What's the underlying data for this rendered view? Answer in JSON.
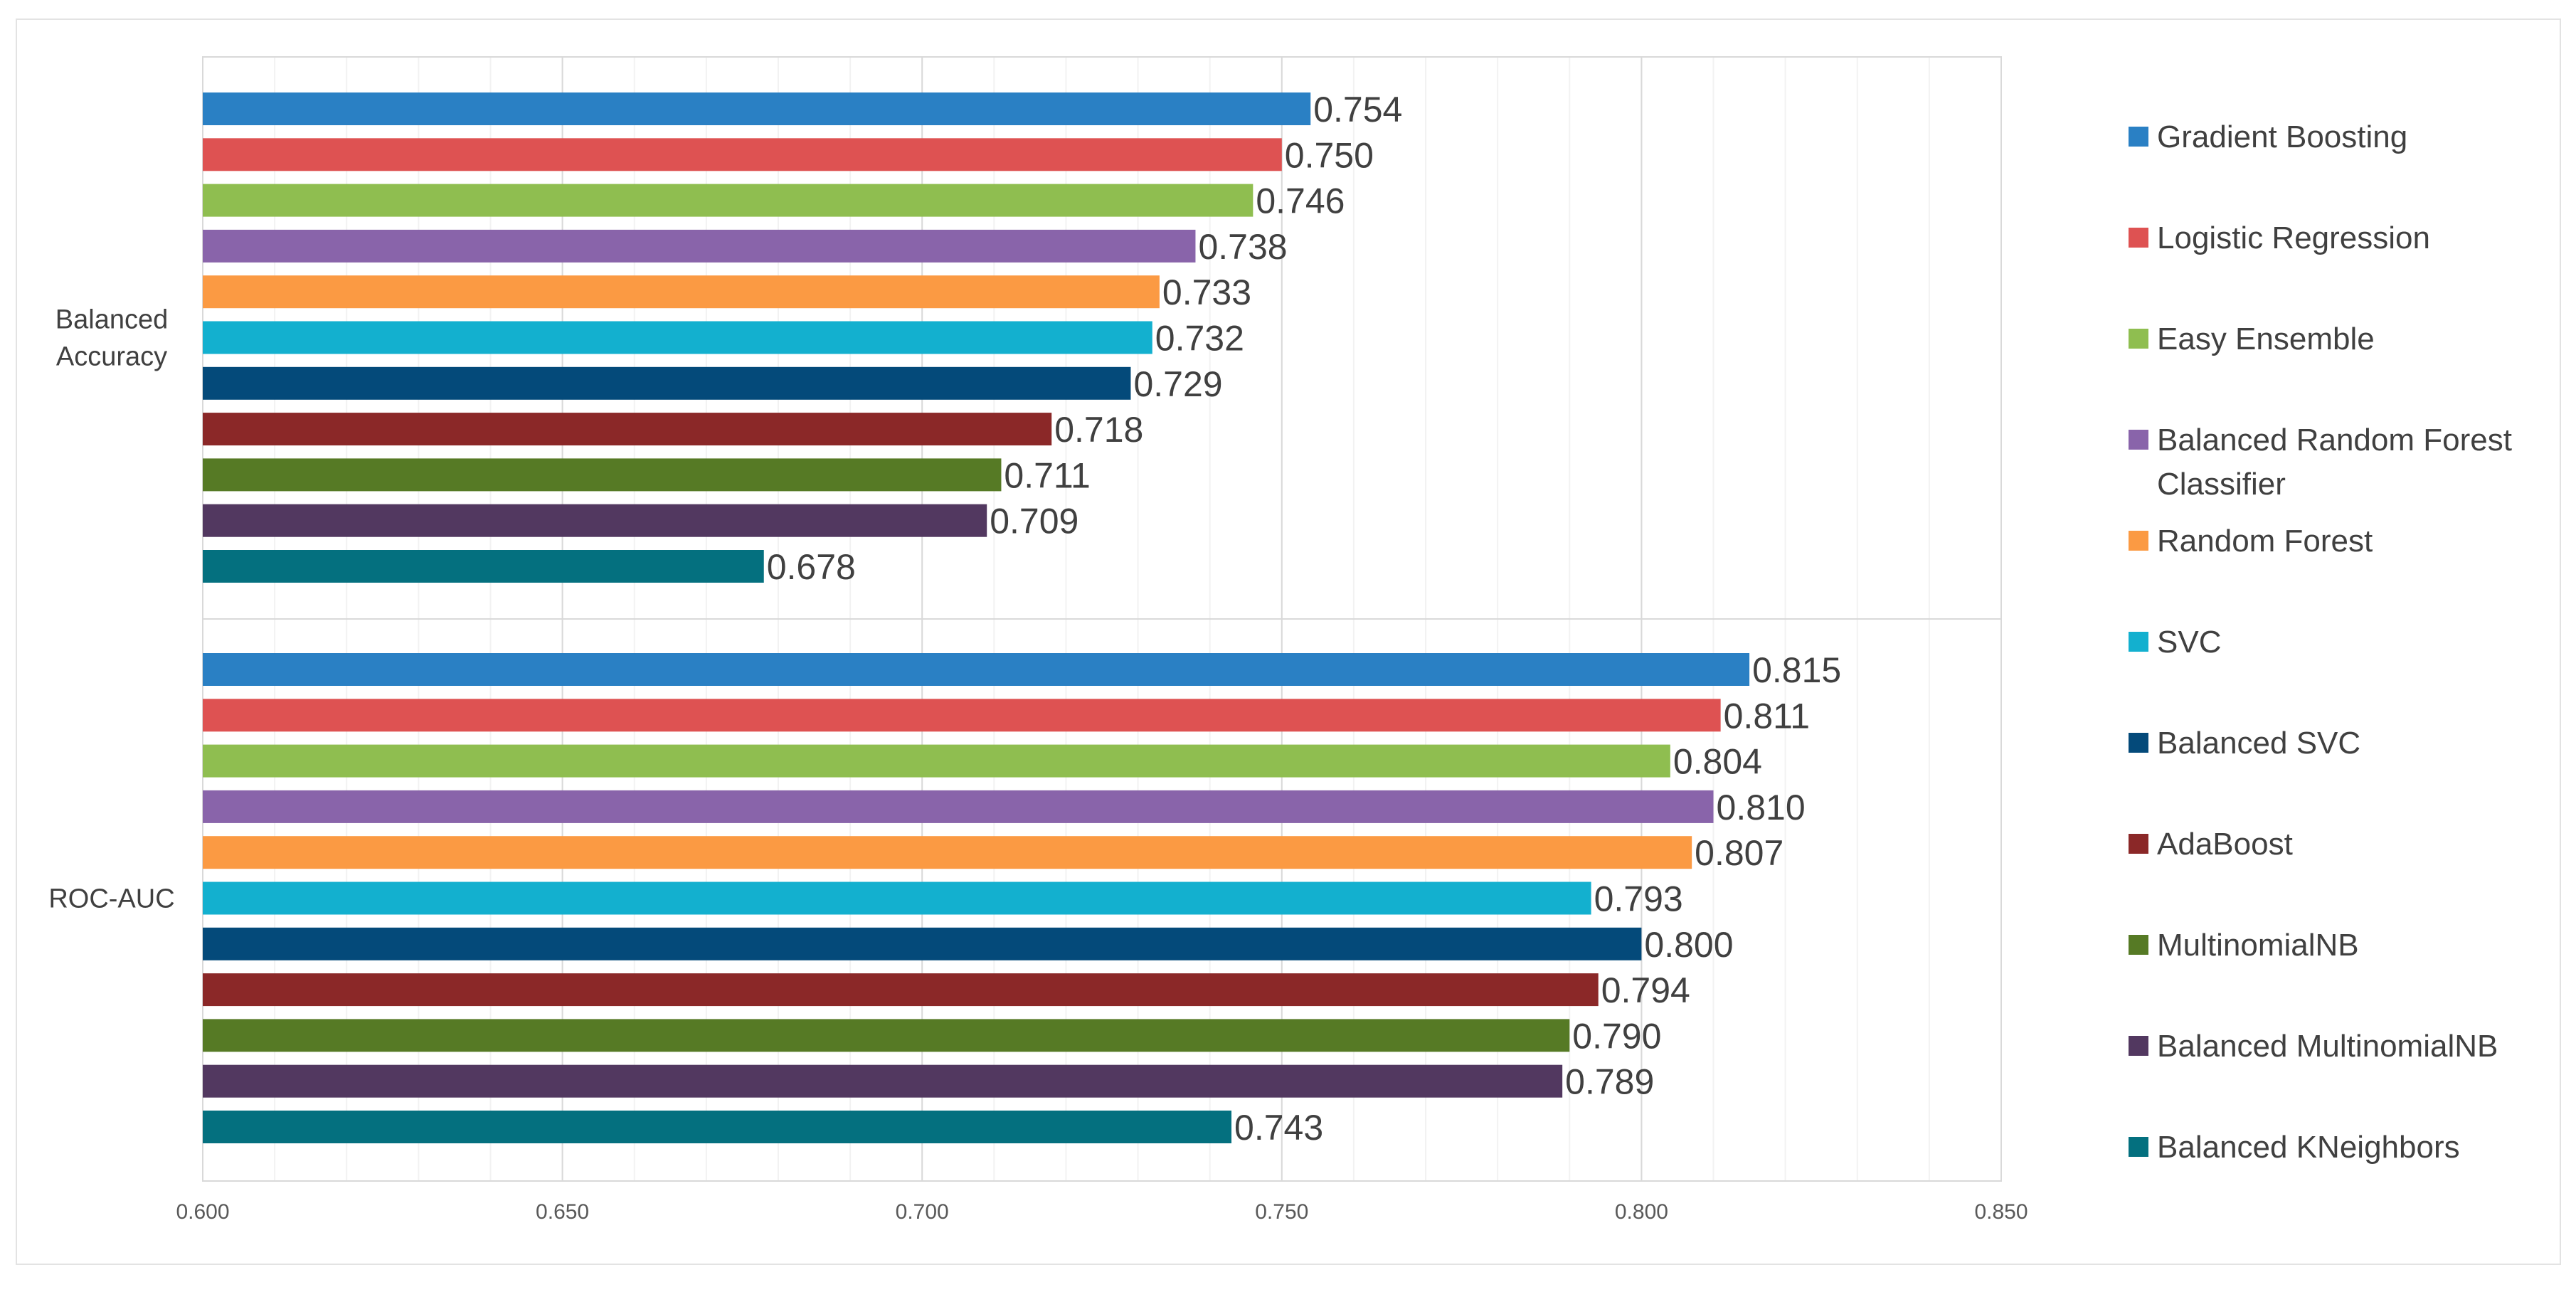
{
  "chart_data": {
    "type": "bar",
    "orientation": "horizontal",
    "title": "",
    "xlabel": "",
    "ylabel": "",
    "xlim": [
      0.6,
      0.85
    ],
    "ticks": [
      "0.600",
      "0.650",
      "0.700",
      "0.750",
      "0.800",
      "0.850"
    ],
    "tick_values": [
      0.6,
      0.65,
      0.7,
      0.75,
      0.8,
      0.85
    ],
    "grid": true,
    "legend_position": "right",
    "categories": [
      "Balanced Accuracy",
      "ROC-AUC"
    ],
    "series": [
      {
        "name": "Gradient Boosting",
        "color": "#2a80c4",
        "values": [
          0.754,
          0.815
        ]
      },
      {
        "name": "Logistic Regression",
        "color": "#de5252",
        "values": [
          0.75,
          0.811
        ]
      },
      {
        "name": "Easy Ensemble",
        "color": "#8fbe50",
        "values": [
          0.746,
          0.804
        ]
      },
      {
        "name": "Balanced Random Forest Classifier",
        "color": "#8964aa",
        "values": [
          0.738,
          0.81
        ]
      },
      {
        "name": "Random Forest",
        "color": "#fb9a43",
        "values": [
          0.733,
          0.807
        ]
      },
      {
        "name": "SVC",
        "color": "#13b0cf",
        "values": [
          0.732,
          0.793
        ]
      },
      {
        "name": "Balanced SVC",
        "color": "#044a7a",
        "values": [
          0.729,
          0.8
        ]
      },
      {
        "name": "AdaBoost",
        "color": "#8b2828",
        "values": [
          0.718,
          0.794
        ]
      },
      {
        "name": "MultinomialNB",
        "color": "#567a25",
        "values": [
          0.711,
          0.79
        ]
      },
      {
        "name": "Balanced MultinomialNB",
        "color": "#523860",
        "values": [
          0.709,
          0.789
        ]
      },
      {
        "name": "Balanced KNeighbors",
        "color": "#04707f",
        "values": [
          0.678,
          0.743
        ]
      }
    ],
    "value_labels": [
      [
        "0.754",
        "0.750",
        "0.746",
        "0.738",
        "0.733",
        "0.732",
        "0.729",
        "0.718",
        "0.711",
        "0.709",
        "0.678"
      ],
      [
        "0.815",
        "0.811",
        "0.804",
        "0.810",
        "0.807",
        "0.793",
        "0.800",
        "0.794",
        "0.790",
        "0.789",
        "0.743"
      ]
    ],
    "category_labels": [
      [
        "Balanced",
        "Accuracy"
      ],
      [
        "ROC-AUC"
      ]
    ],
    "legend_labels": [
      [
        "Gradient Boosting"
      ],
      [
        "Logistic Regression"
      ],
      [
        "Easy Ensemble"
      ],
      [
        "Balanced Random Forest",
        "Classifier"
      ],
      [
        "Random Forest"
      ],
      [
        "SVC"
      ],
      [
        "Balanced SVC"
      ],
      [
        "AdaBoost"
      ],
      [
        "MultinomialNB"
      ],
      [
        "Balanced MultinomialNB"
      ],
      [
        "Balanced KNeighbors"
      ]
    ]
  }
}
